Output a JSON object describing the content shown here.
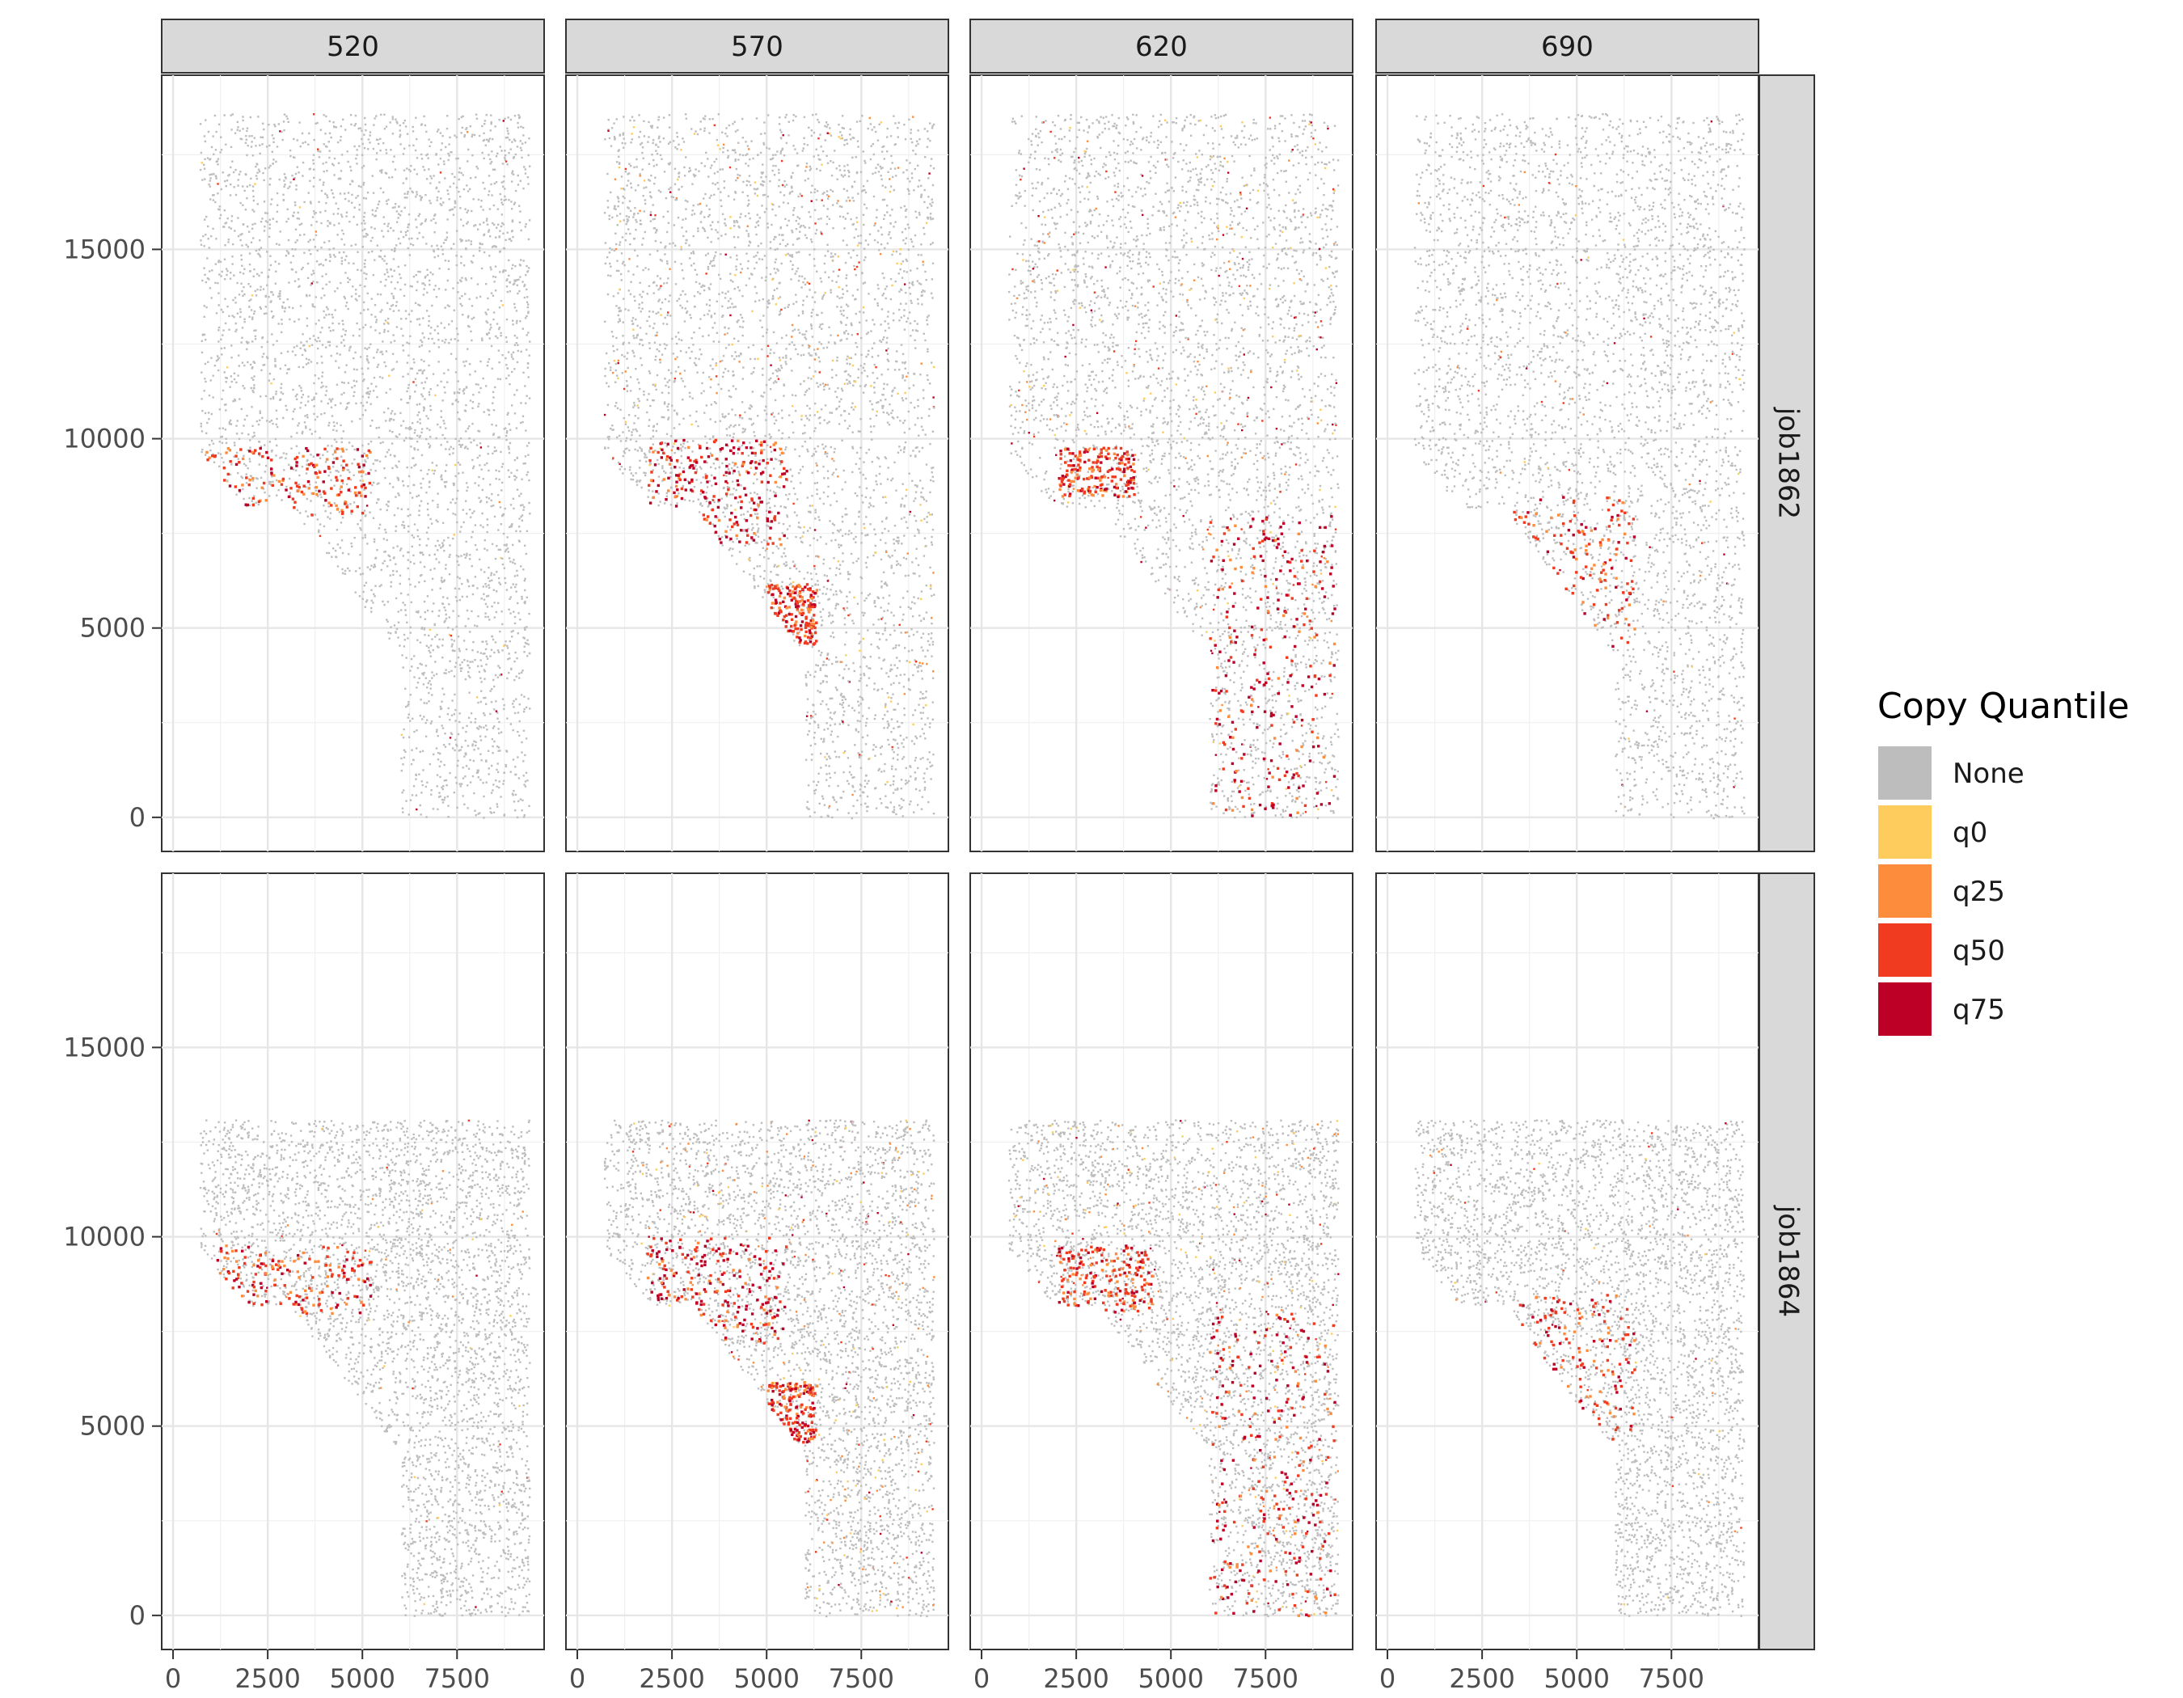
{
  "chart_data": {
    "type": "scatter",
    "facet_columns": [
      "520",
      "570",
      "620",
      "690"
    ],
    "facet_rows": [
      "job1862",
      "job1864"
    ],
    "x_ticks": [
      0,
      2500,
      5000,
      7500
    ],
    "x_tick_labels": [
      "0",
      "2500",
      "5000",
      "7500"
    ],
    "y_ticks": [
      0,
      5000,
      10000,
      15000
    ],
    "y_tick_labels": [
      "0",
      "5000",
      "10000",
      "15000"
    ],
    "xlim": [
      -300,
      9800
    ],
    "ylim": [
      -900,
      19600
    ],
    "grid": true,
    "legend": {
      "title": "Copy Quantile",
      "position": "right",
      "entries": [
        {
          "label": "None",
          "color": "#bdbdbd"
        },
        {
          "label": "q0",
          "color": "#fecc5c"
        },
        {
          "label": "q25",
          "color": "#fd8d3c"
        },
        {
          "label": "q50",
          "color": "#f03b20"
        },
        {
          "label": "q75",
          "color": "#bd0026"
        }
      ]
    },
    "tissue_regions": {
      "job1862": {
        "top_y": 18600,
        "upper_x": [
          700,
          9400
        ],
        "lower_x": [
          6000,
          9400
        ],
        "shoulder_y": 9700
      },
      "job1864": {
        "top_y": 13100,
        "upper_x": [
          700,
          9400
        ],
        "lower_x": [
          6000,
          9400
        ],
        "shoulder_y": 9700
      }
    },
    "hotspots": [
      {
        "facet": "520",
        "row": "job1862",
        "region": "lower-left edge of upper block",
        "x": [
          700,
          5200
        ],
        "y": [
          8000,
          9800
        ],
        "dominant": "q50"
      },
      {
        "facet": "570",
        "row": "job1862",
        "region": "lower-left edge of upper block",
        "x": [
          1800,
          5500
        ],
        "y": [
          7200,
          10000
        ],
        "dominant": "q75"
      },
      {
        "facet": "570",
        "row": "job1862",
        "region": "diagonal boundary",
        "x": [
          5000,
          6300
        ],
        "y": [
          4600,
          6200
        ],
        "dominant": "q50"
      },
      {
        "facet": "620",
        "row": "job1862",
        "region": "lower-left edge of upper block",
        "x": [
          2000,
          4000
        ],
        "y": [
          8500,
          9800
        ],
        "dominant": "q50"
      },
      {
        "facet": "620",
        "row": "job1862",
        "region": "lower block scattered",
        "x": [
          6000,
          9300
        ],
        "y": [
          0,
          8000
        ],
        "dominant": "q75"
      },
      {
        "facet": "690",
        "row": "job1862",
        "region": "diagonal boundary",
        "x": [
          3300,
          6500
        ],
        "y": [
          4500,
          8500
        ],
        "dominant": "q50"
      },
      {
        "facet": "520",
        "row": "job1864",
        "region": "lower-left edge of upper block",
        "x": [
          700,
          5200
        ],
        "y": [
          8000,
          9800
        ],
        "dominant": "q50"
      },
      {
        "facet": "570",
        "row": "job1864",
        "region": "lower-left edge of upper block",
        "x": [
          1800,
          5500
        ],
        "y": [
          7200,
          10000
        ],
        "dominant": "q75"
      },
      {
        "facet": "570",
        "row": "job1864",
        "region": "diagonal boundary",
        "x": [
          5000,
          6300
        ],
        "y": [
          4600,
          6200
        ],
        "dominant": "q50"
      },
      {
        "facet": "620",
        "row": "job1864",
        "region": "lower-left edge of upper block",
        "x": [
          2000,
          4500
        ],
        "y": [
          8000,
          9800
        ],
        "dominant": "q50"
      },
      {
        "facet": "620",
        "row": "job1864",
        "region": "lower block scattered",
        "x": [
          6000,
          9300
        ],
        "y": [
          0,
          8000
        ],
        "dominant": "q75"
      },
      {
        "facet": "690",
        "row": "job1864",
        "region": "diagonal boundary",
        "x": [
          3300,
          6500
        ],
        "y": [
          4500,
          8500
        ],
        "dominant": "q50"
      }
    ]
  }
}
